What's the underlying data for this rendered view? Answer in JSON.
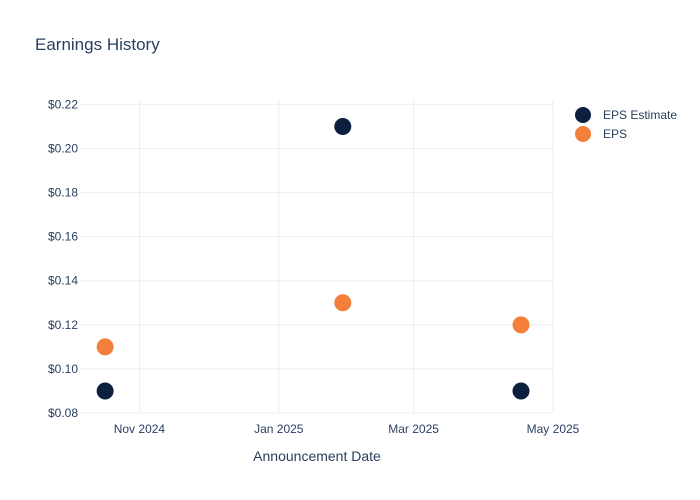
{
  "chart_data": {
    "type": "scatter",
    "title": "Earnings History",
    "xlabel": "Announcement Date",
    "ylabel": "",
    "x_ticks": [
      {
        "label": "Nov 2024",
        "date": "2024-11-01"
      },
      {
        "label": "Jan 2025",
        "date": "2025-01-01"
      },
      {
        "label": "Mar 2025",
        "date": "2025-03-01"
      },
      {
        "label": "May 2025",
        "date": "2025-05-01"
      }
    ],
    "xlim": [
      "2024-10-06",
      "2025-05-01"
    ],
    "ylim": [
      0.08,
      0.222
    ],
    "y_ticks": [
      0.08,
      0.1,
      0.12,
      0.14,
      0.16,
      0.18,
      0.2,
      0.22
    ],
    "y_tick_labels": [
      "$0.08",
      "$0.10",
      "$0.12",
      "$0.14",
      "$0.16",
      "$0.18",
      "$0.20",
      "$0.22"
    ],
    "grid": true,
    "legend_position": "top-right",
    "series": [
      {
        "name": "EPS Estimate",
        "color": "#0d1f3f",
        "points": [
          {
            "x": "2024-10-17",
            "y": 0.09
          },
          {
            "x": "2025-01-29",
            "y": 0.21
          },
          {
            "x": "2025-04-17",
            "y": 0.09
          }
        ]
      },
      {
        "name": "EPS",
        "color": "#f47f3a",
        "points": [
          {
            "x": "2024-10-17",
            "y": 0.11
          },
          {
            "x": "2025-01-29",
            "y": 0.13
          },
          {
            "x": "2025-04-17",
            "y": 0.12
          }
        ]
      }
    ]
  }
}
